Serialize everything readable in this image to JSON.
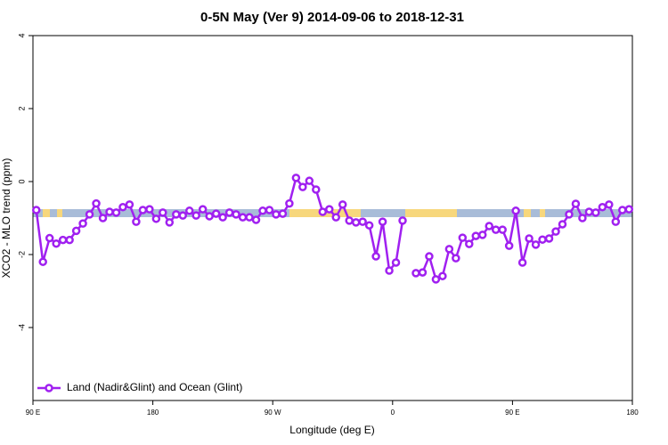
{
  "chart_data": {
    "type": "line",
    "title": "0-5N May (Ver 9)   2014-09-06 to 2018-12-31",
    "x_label": "Longitude (deg E)",
    "y_label": "XCO2 - MLO trend (ppm)",
    "xlim": [
      90,
      540
    ],
    "xticks": [
      {
        "value": 90,
        "label": "90 E"
      },
      180,
      {
        "value": 270,
        "label": "90 W"
      },
      {
        "value": 360,
        "label": "0"
      },
      {
        "value": 450,
        "label": "90 E"
      },
      {
        "value": 540,
        "label": "180"
      }
    ],
    "ylim": [
      -6,
      4
    ],
    "yticks": [
      4,
      2,
      0,
      -2,
      -4
    ],
    "legend": "bottom-left",
    "x": [
      92.5,
      97.5,
      102.5,
      107.5,
      112.5,
      117.5,
      122.5,
      127.5,
      132.5,
      137.5,
      142.5,
      147.5,
      152.5,
      157.5,
      162.5,
      167.5,
      172.5,
      177.5,
      182.5,
      187.5,
      192.5,
      197.5,
      202.5,
      207.5,
      212.5,
      217.5,
      222.5,
      227.5,
      232.5,
      237.5,
      242.5,
      247.5,
      252.5,
      257.5,
      262.5,
      267.5,
      272.5,
      277.5,
      282.5,
      287.5,
      292.5,
      297.5,
      302.5,
      307.5,
      312.5,
      317.5,
      322.5,
      327.5,
      332.5,
      337.5,
      342.5,
      347.5,
      352.5,
      357.5,
      362.5,
      367.5,
      372.5,
      377.5,
      382.5,
      387.5,
      392.5,
      397.5,
      402.5,
      407.5,
      412.5,
      417.5,
      422.5,
      427.5,
      432.5,
      437.5,
      442.5,
      447.5,
      452.5,
      457.5,
      462.5,
      467.5,
      472.5,
      477.5,
      482.5,
      487.5,
      492.5,
      497.5,
      502.5,
      507.5,
      512.5,
      517.5,
      522.5,
      527.5,
      532.5,
      537.5
    ],
    "series": [
      {
        "name": "Land (Nadir&Glint) and Ocean (Glint)",
        "color": "#a020f0",
        "values": [
          -0.78,
          -2.2,
          -1.55,
          -1.7,
          -1.6,
          -1.6,
          -1.35,
          -1.15,
          -0.9,
          -0.6,
          -1.0,
          -0.83,
          -0.85,
          -0.7,
          -0.63,
          -1.1,
          -0.78,
          -0.76,
          -1.02,
          -0.85,
          -1.12,
          -0.9,
          -0.93,
          -0.8,
          -0.93,
          -0.76,
          -0.95,
          -0.88,
          -0.98,
          -0.85,
          -0.9,
          -0.98,
          -0.98,
          -1.05,
          -0.8,
          -0.78,
          -0.9,
          -0.88,
          -0.6,
          0.1,
          -0.15,
          0.02,
          -0.22,
          -0.83,
          -0.76,
          -0.98,
          -0.63,
          -1.07,
          -1.12,
          -1.1,
          -1.2,
          -2.05,
          -1.1,
          -2.44,
          -2.22,
          -1.07,
          null,
          -2.51,
          -2.49,
          -2.05,
          -2.68,
          -2.59,
          -1.85,
          -2.1,
          -1.54,
          -1.71,
          -1.49,
          -1.46,
          -1.22,
          -1.32,
          -1.32,
          -1.76,
          -0.8,
          -2.22,
          -1.56,
          -1.73,
          -1.59,
          -1.56,
          -1.37,
          -1.17,
          -0.9,
          -0.61,
          -1.0,
          -0.83,
          -0.85,
          -0.7,
          -0.63,
          -1.1,
          -0.78,
          -0.76
        ]
      }
    ]
  }
}
